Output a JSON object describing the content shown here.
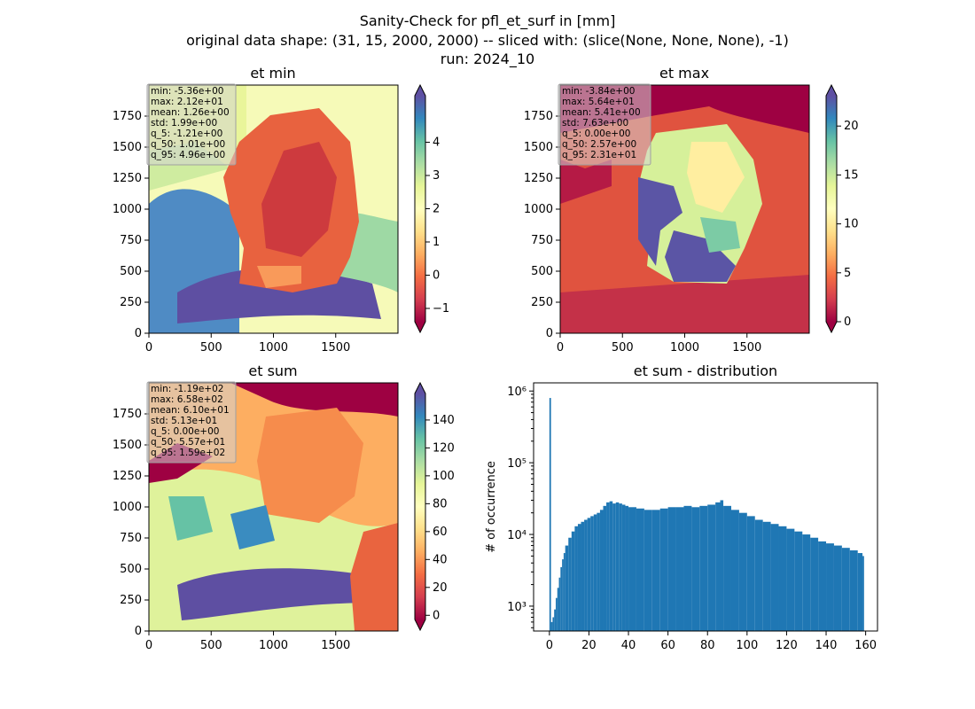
{
  "figure": {
    "suptitle": [
      "Sanity-Check for pfl_et_surf in [mm]",
      "original data shape: (31, 15, 2000, 2000) -- sliced with: (slice(None, None, None), -1)",
      "run: 2024_10"
    ]
  },
  "chart_data": [
    {
      "type": "heatmap",
      "title": "et min",
      "colormap": "Spectral",
      "xticks": [
        "0",
        "500",
        "1000",
        "1500"
      ],
      "yticks": [
        "0",
        "250",
        "500",
        "750",
        "1000",
        "1250",
        "1500",
        "1750"
      ],
      "xlim": [
        0,
        2000
      ],
      "ylim": [
        0,
        2000
      ],
      "colorbar": {
        "ticks": [
          "−1",
          "0",
          "1",
          "2",
          "3",
          "4"
        ],
        "tick_values": [
          -1,
          0,
          1,
          2,
          3,
          4
        ],
        "range": [
          -1.4,
          5.4
        ],
        "extend": "both"
      },
      "stats": [
        "min: -5.36e+00",
        "max: 2.12e+01",
        "mean: 1.26e+00",
        "std: 1.99e+00",
        "q_5: -1.21e+00",
        "q_50: 1.01e+00",
        "q_95: 4.96e+00"
      ]
    },
    {
      "type": "heatmap",
      "title": "et max",
      "colormap": "Spectral",
      "xticks": [
        "0",
        "500",
        "1000",
        "1500"
      ],
      "yticks": [
        "0",
        "250",
        "500",
        "750",
        "1000",
        "1250",
        "1500",
        "1750"
      ],
      "xlim": [
        0,
        2000
      ],
      "ylim": [
        0,
        2000
      ],
      "colorbar": {
        "ticks": [
          "0",
          "5",
          "10",
          "15",
          "20"
        ],
        "tick_values": [
          0,
          5,
          10,
          15,
          20
        ],
        "range": [
          0,
          23.1
        ],
        "extend": "both"
      },
      "stats": [
        "min: -3.84e+00",
        "max: 5.64e+01",
        "mean: 5.41e+00",
        "std: 7.63e+00",
        "q_5: 0.00e+00",
        "q_50: 2.57e+00",
        "q_95: 2.31e+01"
      ]
    },
    {
      "type": "heatmap",
      "title": "et sum",
      "colormap": "Spectral",
      "xticks": [
        "0",
        "500",
        "1000",
        "1500"
      ],
      "yticks": [
        "0",
        "250",
        "500",
        "750",
        "1000",
        "1250",
        "1500",
        "1750"
      ],
      "xlim": [
        0,
        2000
      ],
      "ylim": [
        0,
        2000
      ],
      "colorbar": {
        "ticks": [
          "0",
          "20",
          "40",
          "60",
          "80",
          "100",
          "120",
          "140"
        ],
        "tick_values": [
          0,
          20,
          40,
          60,
          80,
          100,
          120,
          140
        ],
        "range": [
          -3,
          159
        ],
        "extend": "both"
      },
      "stats": [
        "min: -1.19e+02",
        "max: 6.58e+02",
        "mean: 6.10e+01",
        "std: 5.13e+01",
        "q_5: 0.00e+00",
        "q_50: 5.57e+01",
        "q_95: 1.59e+02"
      ]
    },
    {
      "type": "bar",
      "title": "et sum - distribution",
      "ylabel": "# of occurrence",
      "yscale": "log",
      "color": "#1f77b4",
      "xlim": [
        -8,
        166
      ],
      "ylim": [
        450,
        1300000
      ],
      "xticks": [
        0,
        20,
        40,
        60,
        80,
        100,
        120,
        140,
        160
      ],
      "yticks": [
        {
          "value": 1000,
          "label": "10³"
        },
        {
          "value": 10000,
          "label": "10⁴"
        },
        {
          "value": 100000,
          "label": "10⁵"
        },
        {
          "value": 1000000,
          "label": "10⁶"
        }
      ],
      "bin_width": 0.8,
      "x": [
        0,
        0.8,
        1.6,
        2.4,
        3.2,
        4.0,
        4.8,
        5.6,
        6.4,
        7.2,
        8.0,
        9.6,
        11.2,
        12.8,
        14.4,
        16.0,
        17.6,
        19.2,
        20.8,
        22.4,
        24.0,
        25.6,
        27.2,
        28.8,
        30.4,
        32.0,
        33.6,
        35.2,
        36.8,
        38.4,
        40.0,
        44.0,
        48.0,
        52.0,
        56.0,
        60.0,
        64.0,
        68.0,
        72.0,
        76.0,
        80.0,
        84.0,
        86.4,
        88.0,
        92.0,
        96.0,
        100.0,
        104.0,
        108.0,
        112.0,
        116.0,
        120.0,
        124.0,
        128.0,
        132.0,
        136.0,
        140.0,
        144.0,
        148.0,
        152.0,
        156.0,
        158.4
      ],
      "y": [
        800000,
        600,
        700,
        900,
        1300,
        1800,
        2500,
        3500,
        4500,
        5500,
        7000,
        9000,
        11000,
        13000,
        14000,
        15000,
        16000,
        17000,
        18000,
        19000,
        20000,
        22000,
        25000,
        28000,
        29000,
        27000,
        28000,
        27000,
        26000,
        25000,
        24000,
        23000,
        22000,
        22000,
        23000,
        24000,
        24000,
        25000,
        24000,
        25000,
        26000,
        28000,
        30000,
        25000,
        22000,
        20000,
        18000,
        16000,
        15000,
        14000,
        13000,
        12000,
        11000,
        10000,
        9000,
        8000,
        7500,
        7000,
        6500,
        6000,
        5500,
        5000
      ]
    }
  ]
}
